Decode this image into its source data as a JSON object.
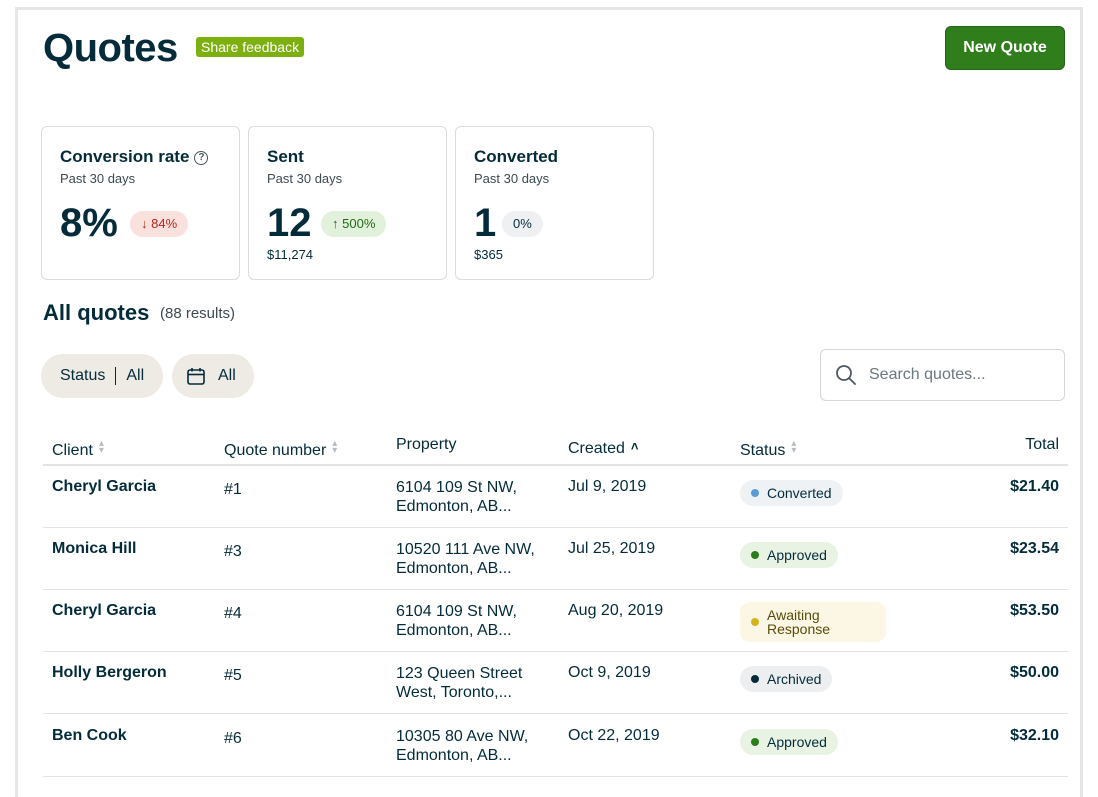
{
  "header": {
    "title": "Quotes",
    "feedback_label": "Share feedback",
    "new_quote_label": "New Quote"
  },
  "cards": [
    {
      "title": "Conversion rate",
      "period": "Past 30 days",
      "value": "8%",
      "change": "84%",
      "direction": "down",
      "amount": ""
    },
    {
      "title": "Sent",
      "period": "Past 30 days",
      "value": "12",
      "change": "500%",
      "direction": "up",
      "amount": "$11,274"
    },
    {
      "title": "Converted",
      "period": "Past 30 days",
      "value": "1",
      "change": "0%",
      "direction": "neutral",
      "amount": "$365"
    }
  ],
  "list": {
    "title": "All quotes",
    "results": "(88 results)"
  },
  "filters": {
    "status_label": "Status",
    "status_value": "All",
    "date_value": "All"
  },
  "search": {
    "placeholder": "Search quotes..."
  },
  "table": {
    "headers": {
      "client": "Client",
      "quote_number": "Quote number",
      "property": "Property",
      "created": "Created",
      "status": "Status",
      "total": "Total"
    },
    "rows": [
      {
        "client": "Cheryl Garcia",
        "quote_number": "#1",
        "property_line1": "6104 109 St NW,",
        "property_line2": "Edmonton, AB...",
        "created": "Jul 9, 2019",
        "status_line1": "Converted",
        "status_line2": "",
        "total": "$21.40"
      },
      {
        "client": "Monica Hill",
        "quote_number": "#3",
        "property_line1": "10520 111 Ave NW,",
        "property_line2": "Edmonton, AB...",
        "created": "Jul 25, 2019",
        "status_line1": "Approved",
        "status_line2": "",
        "total": "$23.54"
      },
      {
        "client": "Cheryl Garcia",
        "quote_number": "#4",
        "property_line1": "6104 109 St NW,",
        "property_line2": "Edmonton, AB...",
        "created": "Aug 20, 2019",
        "status_line1": "Awaiting",
        "status_line2": "Response",
        "total": "$53.50"
      },
      {
        "client": "Holly Bergeron",
        "quote_number": "#5",
        "property_line1": "123 Queen Street",
        "property_line2": "West, Toronto,...",
        "created": "Oct 9, 2019",
        "status_line1": "Archived",
        "status_line2": "",
        "total": "$50.00"
      },
      {
        "client": "Ben Cook",
        "quote_number": "#6",
        "property_line1": "10305 80 Ave NW,",
        "property_line2": "Edmonton, AB...",
        "created": "Oct 22, 2019",
        "status_line1": "Approved",
        "status_line2": "",
        "total": "$32.10"
      }
    ]
  },
  "colors": {
    "primary_green": "#2f7d1b",
    "feedback_green": "#7db00e",
    "text_dark": "#032b3a"
  }
}
